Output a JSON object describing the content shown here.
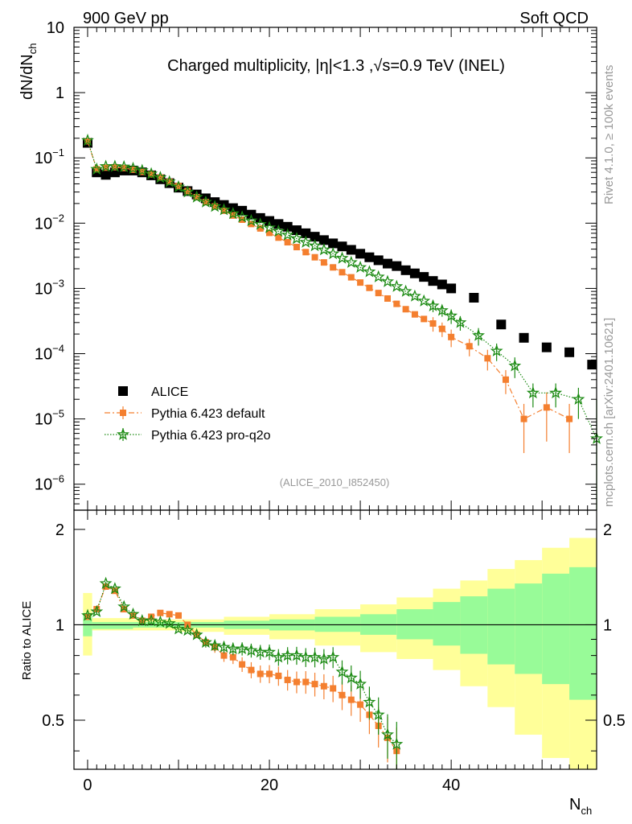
{
  "header": {
    "left": "900 GeV pp",
    "right": "Soft QCD"
  },
  "side_labels": {
    "rivet": "Rivet 4.1.0, ≥ 100k events",
    "mcplots": "mcplots.cern.ch [arXiv:2401.10621]"
  },
  "chart_data": {
    "type": "scatter",
    "title": "Charged multiplicity, |η|<1.3 ,√s=0.9 TeV (INEL)",
    "analysis_tag": "(ALICE_2010_I852450)",
    "xlabel": "N",
    "xlabel_sub": "ch",
    "ylabel_main": "dN/dN",
    "ylabel_main_sub": "ch",
    "ylabel_ratio": "Ratio to ALICE",
    "xlim": [
      -1.5,
      56
    ],
    "ylim_main": [
      4e-07,
      10
    ],
    "ylim_ratio": [
      0.35,
      2.3
    ],
    "x_ticks": [
      0,
      20,
      40
    ],
    "main_ticks": [
      {
        "base": "10",
        "exp": "",
        "value": 10
      },
      {
        "base": "1",
        "exp": "",
        "value": 1
      },
      {
        "base": "10",
        "exp": "−1",
        "value": 0.1
      },
      {
        "base": "10",
        "exp": "−2",
        "value": 0.01
      },
      {
        "base": "10",
        "exp": "−3",
        "value": 0.001
      },
      {
        "base": "10",
        "exp": "−4",
        "value": 0.0001
      },
      {
        "base": "10",
        "exp": "−5",
        "value": 1e-05
      },
      {
        "base": "10",
        "exp": "−6",
        "value": 1e-06
      }
    ],
    "ratio_ticks": [
      {
        "label": "0.5",
        "value": 0.5
      },
      {
        "label": "1",
        "value": 1
      },
      {
        "label": "2",
        "value": 2
      }
    ],
    "legend": [
      "ALICE",
      "Pythia 6.423 default",
      "Pythia 6.423 pro-q2o"
    ],
    "series": [
      {
        "name": "ALICE",
        "color": "#000000",
        "marker": "square",
        "points": [
          [
            0,
            0.17
          ],
          [
            1,
            0.06
          ],
          [
            2,
            0.055
          ],
          [
            3,
            0.06
          ],
          [
            4,
            0.064
          ],
          [
            5,
            0.064
          ],
          [
            6,
            0.06
          ],
          [
            7,
            0.054
          ],
          [
            8,
            0.047
          ],
          [
            9,
            0.041
          ],
          [
            10,
            0.035
          ],
          [
            11,
            0.031
          ],
          [
            12,
            0.0275
          ],
          [
            13,
            0.024
          ],
          [
            14,
            0.021
          ],
          [
            15,
            0.019
          ],
          [
            16,
            0.017
          ],
          [
            17,
            0.0155
          ],
          [
            18,
            0.0135
          ],
          [
            19,
            0.012
          ],
          [
            20,
            0.0108
          ],
          [
            21,
            0.0097
          ],
          [
            22,
            0.0088
          ],
          [
            23,
            0.0078
          ],
          [
            24,
            0.007
          ],
          [
            25,
            0.0062
          ],
          [
            26,
            0.0055
          ],
          [
            27,
            0.0049
          ],
          [
            28,
            0.0044
          ],
          [
            29,
            0.0039
          ],
          [
            30,
            0.0034
          ],
          [
            31,
            0.003
          ],
          [
            32,
            0.0027
          ],
          [
            33,
            0.0024
          ],
          [
            34,
            0.0022
          ],
          [
            35,
            0.0019
          ],
          [
            36,
            0.0017
          ],
          [
            37,
            0.0015
          ],
          [
            38,
            0.0013
          ],
          [
            39,
            0.00115
          ],
          [
            40,
            0.001
          ],
          [
            42.5,
            0.00072
          ],
          [
            45.5,
            0.00028
          ],
          [
            48,
            0.000175
          ],
          [
            50.5,
            0.000125
          ],
          [
            53,
            0.000105
          ],
          [
            55.5,
            6.8e-05
          ]
        ]
      },
      {
        "name": "Pythia 6.423 default",
        "color": "#f47f2f",
        "marker": "square-small",
        "points": [
          [
            0,
            0.18
          ],
          [
            1,
            0.067
          ],
          [
            2,
            0.071
          ],
          [
            3,
            0.072
          ],
          [
            4,
            0.07
          ],
          [
            5,
            0.066
          ],
          [
            6,
            0.061
          ],
          [
            7,
            0.056
          ],
          [
            8,
            0.05
          ],
          [
            9,
            0.043
          ],
          [
            10,
            0.037
          ],
          [
            11,
            0.031
          ],
          [
            12,
            0.025
          ],
          [
            13,
            0.021
          ],
          [
            14,
            0.018
          ],
          [
            15,
            0.0155
          ],
          [
            16,
            0.0131
          ],
          [
            17,
            0.0113
          ],
          [
            18,
            0.0097
          ],
          [
            19,
            0.0083
          ],
          [
            20,
            0.0071
          ],
          [
            21,
            0.006
          ],
          [
            22,
            0.0051
          ],
          [
            23,
            0.0043
          ],
          [
            24,
            0.0036
          ],
          [
            25,
            0.003
          ],
          [
            26,
            0.0025
          ],
          [
            27,
            0.0021
          ],
          [
            28,
            0.00177
          ],
          [
            29,
            0.00148
          ],
          [
            30,
            0.00123
          ],
          [
            31,
            0.00102
          ],
          [
            32,
            0.00085
          ],
          [
            33,
            0.0007
          ],
          [
            34,
            0.00058
          ],
          [
            35,
            0.00048
          ],
          [
            36,
            0.0004
          ],
          [
            37,
            0.00034
          ],
          [
            38,
            0.00029
          ],
          [
            39,
            0.00024
          ],
          [
            40,
            0.00018
          ],
          [
            42,
            0.00013
          ],
          [
            44,
            8.5e-05
          ],
          [
            46,
            4e-05
          ],
          [
            48,
            1e-05
          ],
          [
            50.5,
            1.5e-05
          ],
          [
            53,
            1e-05
          ]
        ],
        "err": [
          [
            0,
            0.02
          ],
          [
            38,
            0.25
          ],
          [
            39,
            0.25
          ],
          [
            40,
            0.3
          ],
          [
            42,
            0.3
          ],
          [
            44,
            0.35
          ],
          [
            46,
            0.4
          ],
          [
            48,
            0.7
          ],
          [
            50.5,
            0.7
          ],
          [
            53,
            0.7
          ]
        ]
      },
      {
        "name": "Pythia 6.423 pro-q2o",
        "color": "#1b8a12",
        "marker": "star",
        "points": [
          [
            0,
            0.185
          ],
          [
            1,
            0.067
          ],
          [
            2,
            0.074
          ],
          [
            3,
            0.074
          ],
          [
            4,
            0.073
          ],
          [
            5,
            0.069
          ],
          [
            6,
            0.064
          ],
          [
            7,
            0.057
          ],
          [
            8,
            0.05
          ],
          [
            9,
            0.043
          ],
          [
            10,
            0.036
          ],
          [
            11,
            0.03
          ],
          [
            12,
            0.025
          ],
          [
            13,
            0.021
          ],
          [
            14,
            0.018
          ],
          [
            15,
            0.016
          ],
          [
            16,
            0.014
          ],
          [
            17,
            0.0124
          ],
          [
            18,
            0.0109
          ],
          [
            19,
            0.0096
          ],
          [
            20,
            0.0085
          ],
          [
            21,
            0.0075
          ],
          [
            22,
            0.0066
          ],
          [
            23,
            0.0058
          ],
          [
            24,
            0.0051
          ],
          [
            25,
            0.0045
          ],
          [
            26,
            0.0039
          ],
          [
            27,
            0.0034
          ],
          [
            28,
            0.0029
          ],
          [
            29,
            0.0025
          ],
          [
            30,
            0.0021
          ],
          [
            31,
            0.0018
          ],
          [
            32,
            0.0015
          ],
          [
            33,
            0.00127
          ],
          [
            34,
            0.00107
          ],
          [
            35,
            0.0009
          ],
          [
            36,
            0.00076
          ],
          [
            37,
            0.00064
          ],
          [
            38,
            0.00054
          ],
          [
            39,
            0.00046
          ],
          [
            40,
            0.00038
          ],
          [
            41,
            0.0003
          ],
          [
            43,
            0.00019
          ],
          [
            45,
            0.00011
          ],
          [
            47,
            6.5e-05
          ],
          [
            49,
            2.5e-05
          ],
          [
            51.5,
            2.5e-05
          ],
          [
            54,
            2e-05
          ],
          [
            56,
            5e-06
          ]
        ],
        "err": [
          [
            0,
            0.02
          ],
          [
            38,
            0.2
          ],
          [
            39,
            0.2
          ],
          [
            40,
            0.25
          ],
          [
            41,
            0.25
          ],
          [
            43,
            0.3
          ],
          [
            45,
            0.3
          ],
          [
            47,
            0.35
          ],
          [
            49,
            0.4
          ],
          [
            51.5,
            0.4
          ],
          [
            54,
            0.5
          ],
          [
            56,
            3
          ]
        ]
      }
    ],
    "ratio_series": [
      {
        "name": "Pythia 6.423 default",
        "points": [
          [
            0,
            1.06
          ],
          [
            1,
            1.12
          ],
          [
            2,
            1.32
          ],
          [
            3,
            1.28
          ],
          [
            4,
            1.12
          ],
          [
            5,
            1.07
          ],
          [
            6,
            1.03
          ],
          [
            7,
            1.06
          ],
          [
            8,
            1.09
          ],
          [
            9,
            1.08
          ],
          [
            10,
            1.07
          ],
          [
            11,
            1.0
          ],
          [
            12,
            0.93
          ],
          [
            13,
            0.88
          ],
          [
            14,
            0.85
          ],
          [
            15,
            0.8
          ],
          [
            16,
            0.79
          ],
          [
            17,
            0.75
          ],
          [
            18,
            0.72
          ],
          [
            19,
            0.7
          ],
          [
            20,
            0.7
          ],
          [
            21,
            0.69
          ],
          [
            22,
            0.67
          ],
          [
            23,
            0.66
          ],
          [
            24,
            0.66
          ],
          [
            25,
            0.65
          ],
          [
            26,
            0.64
          ],
          [
            27,
            0.63
          ],
          [
            28,
            0.6
          ],
          [
            29,
            0.58
          ],
          [
            30,
            0.56
          ],
          [
            31,
            0.52
          ],
          [
            32,
            0.48
          ],
          [
            33,
            0.44
          ],
          [
            34,
            0.4
          ]
        ]
      },
      {
        "name": "Pythia 6.423 pro-q2o",
        "points": [
          [
            0,
            1.07
          ],
          [
            1,
            1.1
          ],
          [
            2,
            1.35
          ],
          [
            3,
            1.3
          ],
          [
            4,
            1.14
          ],
          [
            5,
            1.08
          ],
          [
            6,
            1.03
          ],
          [
            7,
            1.03
          ],
          [
            8,
            1.02
          ],
          [
            9,
            1.01
          ],
          [
            10,
            0.97
          ],
          [
            11,
            0.96
          ],
          [
            12,
            0.93
          ],
          [
            13,
            0.88
          ],
          [
            14,
            0.86
          ],
          [
            15,
            0.85
          ],
          [
            16,
            0.84
          ],
          [
            17,
            0.84
          ],
          [
            18,
            0.83
          ],
          [
            19,
            0.82
          ],
          [
            20,
            0.82
          ],
          [
            21,
            0.79
          ],
          [
            22,
            0.8
          ],
          [
            23,
            0.8
          ],
          [
            24,
            0.79
          ],
          [
            25,
            0.79
          ],
          [
            26,
            0.78
          ],
          [
            27,
            0.79
          ],
          [
            28,
            0.71
          ],
          [
            29,
            0.68
          ],
          [
            30,
            0.65
          ],
          [
            31,
            0.57
          ],
          [
            32,
            0.52
          ],
          [
            33,
            0.45
          ],
          [
            34,
            0.42
          ]
        ]
      }
    ],
    "uncertainty_bands": {
      "inner_color": "#98fb98",
      "outer_color": "#ffff99",
      "bins": [
        [
          -0.5,
          1.09,
          0.92,
          1.26,
          0.8
        ],
        [
          0.5,
          1.02,
          0.97,
          1.05,
          0.96
        ],
        [
          5,
          1.02,
          0.98,
          1.04,
          0.96
        ],
        [
          10,
          1.02,
          0.98,
          1.04,
          0.95
        ],
        [
          15,
          1.03,
          0.97,
          1.06,
          0.93
        ],
        [
          20,
          1.04,
          0.96,
          1.08,
          0.9
        ],
        [
          25,
          1.06,
          0.95,
          1.12,
          0.86
        ],
        [
          30,
          1.08,
          0.93,
          1.16,
          0.82
        ],
        [
          34,
          1.12,
          0.9,
          1.22,
          0.78
        ],
        [
          38,
          1.18,
          0.86,
          1.3,
          0.72
        ],
        [
          41,
          1.23,
          0.81,
          1.38,
          0.64
        ],
        [
          44,
          1.3,
          0.75,
          1.5,
          0.55
        ],
        [
          47,
          1.35,
          0.7,
          1.6,
          0.45
        ],
        [
          50,
          1.45,
          0.65,
          1.75,
          0.38
        ],
        [
          53,
          1.52,
          0.58,
          1.88,
          0.35
        ],
        [
          56,
          1.52,
          0.58,
          1.88,
          0.35
        ]
      ]
    }
  }
}
